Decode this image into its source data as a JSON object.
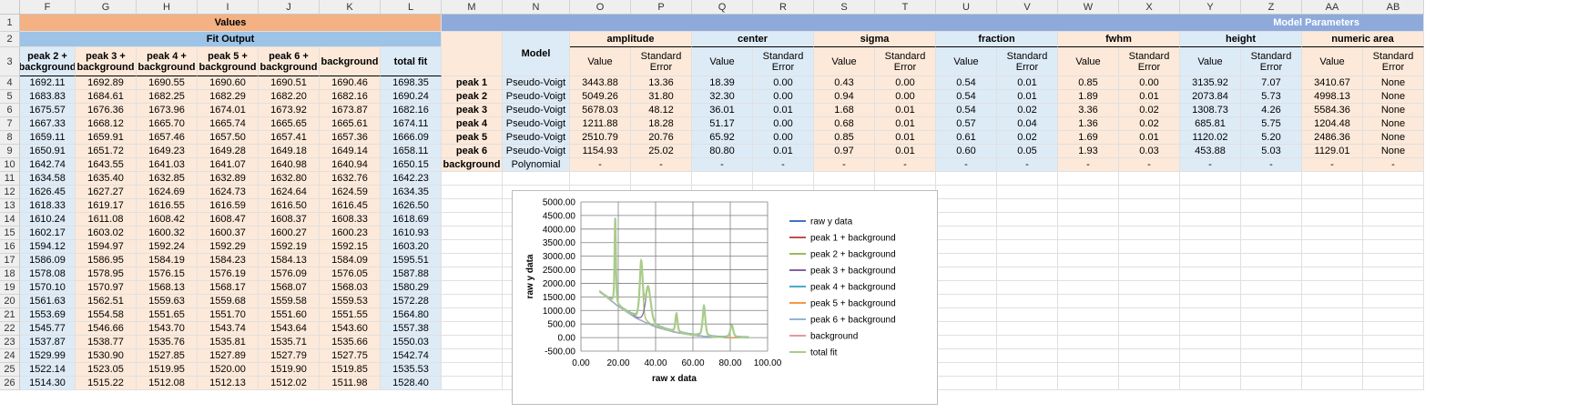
{
  "columns": [
    "F",
    "G",
    "H",
    "I",
    "J",
    "K",
    "L",
    "M",
    "N",
    "O",
    "P",
    "Q",
    "R",
    "S",
    "T",
    "U",
    "V",
    "W",
    "X",
    "Y",
    "Z",
    "AA",
    "AB"
  ],
  "rows": [
    "1",
    "2",
    "3",
    "4",
    "5",
    "6",
    "7",
    "8",
    "9",
    "10",
    "11",
    "12",
    "13",
    "14",
    "15",
    "16",
    "17",
    "18",
    "19",
    "20",
    "21",
    "22",
    "23",
    "24",
    "25",
    "26"
  ],
  "headers": {
    "values": "Values",
    "model_parameters": "Model Parameters",
    "fit_output": "Fit Output",
    "model": "Model",
    "groups": [
      "amplitude",
      "center",
      "sigma",
      "fraction",
      "fwhm",
      "height",
      "numeric area"
    ],
    "value": "Value",
    "std_error": "Standard Error",
    "fit_cols": [
      "peak 2 + background",
      "peak 3 + background",
      "peak 4 + background",
      "peak 5 + background",
      "peak 6 + background",
      "background",
      "total fit"
    ]
  },
  "fit_output": [
    [
      "1692.11",
      "1692.89",
      "1690.55",
      "1690.60",
      "1690.51",
      "1690.46",
      "1698.35"
    ],
    [
      "1683.83",
      "1684.61",
      "1682.25",
      "1682.29",
      "1682.20",
      "1682.16",
      "1690.24"
    ],
    [
      "1675.57",
      "1676.36",
      "1673.96",
      "1674.01",
      "1673.92",
      "1673.87",
      "1682.16"
    ],
    [
      "1667.33",
      "1668.12",
      "1665.70",
      "1665.74",
      "1665.65",
      "1665.61",
      "1674.11"
    ],
    [
      "1659.11",
      "1659.91",
      "1657.46",
      "1657.50",
      "1657.41",
      "1657.36",
      "1666.09"
    ],
    [
      "1650.91",
      "1651.72",
      "1649.23",
      "1649.28",
      "1649.18",
      "1649.14",
      "1658.11"
    ],
    [
      "1642.74",
      "1643.55",
      "1641.03",
      "1641.07",
      "1640.98",
      "1640.94",
      "1650.15"
    ],
    [
      "1634.58",
      "1635.40",
      "1632.85",
      "1632.89",
      "1632.80",
      "1632.76",
      "1642.23"
    ],
    [
      "1626.45",
      "1627.27",
      "1624.69",
      "1624.73",
      "1624.64",
      "1624.59",
      "1634.35"
    ],
    [
      "1618.33",
      "1619.17",
      "1616.55",
      "1616.59",
      "1616.50",
      "1616.45",
      "1626.50"
    ],
    [
      "1610.24",
      "1611.08",
      "1608.42",
      "1608.47",
      "1608.37",
      "1608.33",
      "1618.69"
    ],
    [
      "1602.17",
      "1603.02",
      "1600.32",
      "1600.37",
      "1600.27",
      "1600.23",
      "1610.93"
    ],
    [
      "1594.12",
      "1594.97",
      "1592.24",
      "1592.29",
      "1592.19",
      "1592.15",
      "1603.20"
    ],
    [
      "1586.09",
      "1586.95",
      "1584.19",
      "1584.23",
      "1584.13",
      "1584.09",
      "1595.51"
    ],
    [
      "1578.08",
      "1578.95",
      "1576.15",
      "1576.19",
      "1576.09",
      "1576.05",
      "1587.88"
    ],
    [
      "1570.10",
      "1570.97",
      "1568.13",
      "1568.17",
      "1568.07",
      "1568.03",
      "1580.29"
    ],
    [
      "1561.63",
      "1562.51",
      "1559.63",
      "1559.68",
      "1559.58",
      "1559.53",
      "1572.28"
    ],
    [
      "1553.69",
      "1554.58",
      "1551.65",
      "1551.70",
      "1551.60",
      "1551.55",
      "1564.80"
    ],
    [
      "1545.77",
      "1546.66",
      "1543.70",
      "1543.74",
      "1543.64",
      "1543.60",
      "1557.38"
    ],
    [
      "1537.87",
      "1538.77",
      "1535.76",
      "1535.81",
      "1535.71",
      "1535.66",
      "1550.03"
    ],
    [
      "1529.99",
      "1530.90",
      "1527.85",
      "1527.89",
      "1527.79",
      "1527.75",
      "1542.74"
    ],
    [
      "1522.14",
      "1523.05",
      "1519.95",
      "1520.00",
      "1519.90",
      "1519.85",
      "1535.53"
    ],
    [
      "1514.30",
      "1515.22",
      "1512.08",
      "1512.13",
      "1512.02",
      "1511.98",
      "1528.40"
    ]
  ],
  "params": [
    {
      "label": "peak 1",
      "model": "Pseudo-Voigt",
      "vals": [
        "3443.88",
        "13.36",
        "18.39",
        "0.00",
        "0.43",
        "0.00",
        "0.54",
        "0.01",
        "0.85",
        "0.00",
        "3135.92",
        "7.07",
        "3410.67",
        "None"
      ]
    },
    {
      "label": "peak 2",
      "model": "Pseudo-Voigt",
      "vals": [
        "5049.26",
        "31.80",
        "32.30",
        "0.00",
        "0.94",
        "0.00",
        "0.54",
        "0.01",
        "1.89",
        "0.01",
        "2073.84",
        "5.73",
        "4998.13",
        "None"
      ]
    },
    {
      "label": "peak 3",
      "model": "Pseudo-Voigt",
      "vals": [
        "5678.03",
        "48.12",
        "36.01",
        "0.01",
        "1.68",
        "0.01",
        "0.54",
        "0.02",
        "3.36",
        "0.02",
        "1308.73",
        "4.26",
        "5584.36",
        "None"
      ]
    },
    {
      "label": "peak 4",
      "model": "Pseudo-Voigt",
      "vals": [
        "1211.88",
        "18.28",
        "51.17",
        "0.00",
        "0.68",
        "0.01",
        "0.57",
        "0.04",
        "1.36",
        "0.02",
        "685.81",
        "5.75",
        "1204.48",
        "None"
      ]
    },
    {
      "label": "peak 5",
      "model": "Pseudo-Voigt",
      "vals": [
        "2510.79",
        "20.76",
        "65.92",
        "0.00",
        "0.85",
        "0.01",
        "0.61",
        "0.02",
        "1.69",
        "0.01",
        "1120.02",
        "5.20",
        "2486.36",
        "None"
      ]
    },
    {
      "label": "peak 6",
      "model": "Pseudo-Voigt",
      "vals": [
        "1154.93",
        "25.02",
        "80.80",
        "0.01",
        "0.97",
        "0.01",
        "0.60",
        "0.05",
        "1.93",
        "0.03",
        "453.88",
        "5.03",
        "1129.01",
        "None"
      ]
    },
    {
      "label": "background",
      "model": "Polynomial",
      "vals": [
        "-",
        "-",
        "-",
        "-",
        "-",
        "-",
        "-",
        "-",
        "-",
        "-",
        "-",
        "-",
        "-",
        "-"
      ]
    }
  ],
  "chart_data": {
    "type": "line",
    "xlabel": "raw x data",
    "ylabel": "raw y data",
    "xlim": [
      0,
      100
    ],
    "ylim": [
      -500,
      5000
    ],
    "x_ticks": [
      "0.00",
      "20.00",
      "40.00",
      "60.00",
      "80.00",
      "100.00"
    ],
    "y_ticks": [
      "5000.00",
      "4500.00",
      "4000.00",
      "3500.00",
      "3000.00",
      "2500.00",
      "2000.00",
      "1500.00",
      "1000.00",
      "500.00",
      "0.00",
      "-500.00"
    ],
    "legend_position": "right",
    "series": [
      {
        "name": "raw y data",
        "color": "#4472c4"
      },
      {
        "name": "peak 1 + background",
        "color": "#c0504d"
      },
      {
        "name": "peak 2 + background",
        "color": "#9bbb59"
      },
      {
        "name": "peak 3 + background",
        "color": "#8064a2"
      },
      {
        "name": "peak 4 + background",
        "color": "#4bacc6"
      },
      {
        "name": "peak 5 + background",
        "color": "#f79646"
      },
      {
        "name": "peak 6 + background",
        "color": "#95b3d7"
      },
      {
        "name": "background",
        "color": "#e6989b"
      },
      {
        "name": "total fit",
        "color": "#a9cc8a"
      }
    ],
    "background_poly": [
      [
        10,
        1690
      ],
      [
        20,
        1150
      ],
      [
        30,
        700
      ],
      [
        40,
        390
      ],
      [
        50,
        200
      ],
      [
        60,
        85
      ],
      [
        70,
        20
      ],
      [
        80,
        -5
      ],
      [
        90,
        0
      ]
    ],
    "peaks": [
      {
        "center": 18.39,
        "height": 3135.92,
        "fwhm": 0.85
      },
      {
        "center": 32.3,
        "height": 2073.84,
        "fwhm": 1.89
      },
      {
        "center": 36.01,
        "height": 1308.73,
        "fwhm": 3.36
      },
      {
        "center": 51.17,
        "height": 685.81,
        "fwhm": 1.36
      },
      {
        "center": 65.92,
        "height": 1120.02,
        "fwhm": 1.69
      },
      {
        "center": 80.8,
        "height": 453.88,
        "fwhm": 1.93
      }
    ]
  },
  "colors": {
    "orange_fill": "#fde9d9",
    "blue_fill": "#ddebf7",
    "orange_header": "#f4b183",
    "blue_header": "#8eaadb",
    "blue_header2": "#9dc3e6"
  }
}
